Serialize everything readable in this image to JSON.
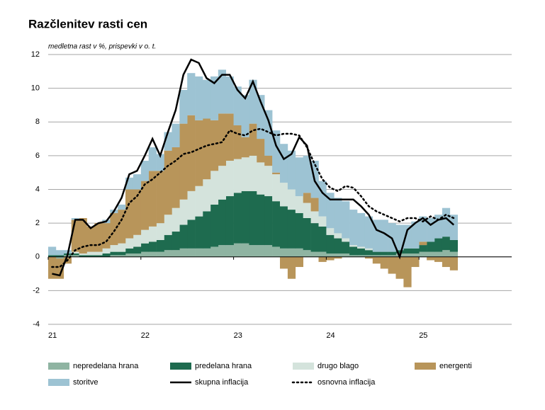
{
  "chart_data": {
    "type": "bar",
    "title": "Razčlenitev rasti cen",
    "subtitle": "medletna rast v %, prispevki v o. t.",
    "categories": [
      "21",
      null,
      null,
      null,
      null,
      null,
      null,
      null,
      null,
      null,
      null,
      null,
      "22",
      null,
      null,
      null,
      null,
      null,
      null,
      null,
      null,
      null,
      null,
      null,
      "23",
      null,
      null,
      null,
      null,
      null,
      null,
      null,
      null,
      null,
      null,
      null,
      "24",
      null,
      null,
      null,
      null,
      null,
      null,
      null,
      null,
      null,
      null,
      null,
      "25",
      null,
      null,
      null,
      null
    ],
    "ylim": [
      -4,
      12
    ],
    "yticks": [
      -4,
      -2,
      0,
      2,
      4,
      6,
      8,
      10,
      12
    ],
    "grid": true,
    "stacked": true,
    "series": [
      {
        "name": "nepredelana hrana",
        "color": "#8fb4a2",
        "values": [
          0.0,
          -0.1,
          0.1,
          0.1,
          0.0,
          0.0,
          0.0,
          0.0,
          0.1,
          0.1,
          0.2,
          0.2,
          0.3,
          0.3,
          0.3,
          0.4,
          0.4,
          0.5,
          0.5,
          0.5,
          0.5,
          0.6,
          0.7,
          0.7,
          0.8,
          0.8,
          0.7,
          0.7,
          0.7,
          0.6,
          0.5,
          0.5,
          0.5,
          0.4,
          0.3,
          0.3,
          0.2,
          0.2,
          0.2,
          0.1,
          0.1,
          0.1,
          0.1,
          0.1,
          0.1,
          0.2,
          0.2,
          0.2,
          0.3,
          0.3,
          0.3,
          0.4,
          0.3
        ]
      },
      {
        "name": "predelana hrana",
        "color": "#1e6b4f",
        "values": [
          0.1,
          0.1,
          0.1,
          0.1,
          0.1,
          0.1,
          0.1,
          0.2,
          0.2,
          0.2,
          0.3,
          0.4,
          0.5,
          0.6,
          0.7,
          0.9,
          1.1,
          1.4,
          1.7,
          1.9,
          2.2,
          2.5,
          2.7,
          2.9,
          3.0,
          3.1,
          3.2,
          3.0,
          2.9,
          2.7,
          2.5,
          2.3,
          2.1,
          1.9,
          1.7,
          1.5,
          1.1,
          0.9,
          0.7,
          0.5,
          0.4,
          0.3,
          0.2,
          0.2,
          0.2,
          0.2,
          0.3,
          0.3,
          0.4,
          0.6,
          0.8,
          0.8,
          0.7
        ]
      },
      {
        "name": "drugo blago",
        "color": "#d4e3dc",
        "values": [
          0.0,
          0.0,
          0.0,
          0.1,
          0.1,
          0.2,
          0.2,
          0.3,
          0.4,
          0.5,
          0.6,
          0.7,
          0.8,
          0.9,
          1.0,
          1.2,
          1.4,
          1.5,
          1.7,
          1.8,
          1.9,
          2.0,
          2.0,
          2.1,
          2.0,
          2.0,
          2.1,
          1.9,
          1.8,
          1.6,
          1.4,
          1.2,
          1.0,
          0.9,
          0.7,
          0.6,
          0.4,
          0.3,
          0.2,
          0.1,
          0.1,
          0.1,
          0.0,
          0.0,
          0.0,
          0.0,
          0.0,
          0.0,
          0.0,
          0.0,
          0.0,
          0.0,
          0.0
        ]
      },
      {
        "name": "energenti",
        "color": "#b8955a",
        "values": [
          -1.3,
          -1.2,
          -0.4,
          1.9,
          2.1,
          1.5,
          1.7,
          1.5,
          1.9,
          2.0,
          2.9,
          2.7,
          2.9,
          3.3,
          3.1,
          3.8,
          3.6,
          4.5,
          4.5,
          3.9,
          3.6,
          3.0,
          3.1,
          2.8,
          2.0,
          1.2,
          1.9,
          1.4,
          0.6,
          0.1,
          -0.7,
          -1.3,
          -0.6,
          0.6,
          0.8,
          -0.3,
          -0.2,
          -0.1,
          0.0,
          0.0,
          0.0,
          -0.1,
          -0.4,
          -0.7,
          -1.0,
          -1.3,
          -1.8,
          -0.6,
          0.2,
          -0.2,
          -0.3,
          -0.6,
          -0.8
        ]
      },
      {
        "name": "storitve",
        "color": "#9dc3d3",
        "values": [
          0.5,
          0.3,
          0.2,
          0.1,
          0.0,
          0.0,
          0.0,
          0.2,
          0.2,
          0.3,
          0.7,
          0.9,
          1.2,
          1.4,
          1.0,
          1.1,
          1.4,
          2.0,
          2.5,
          2.6,
          2.3,
          2.6,
          2.6,
          2.2,
          2.3,
          2.5,
          2.6,
          2.6,
          2.7,
          2.5,
          2.3,
          2.3,
          2.3,
          2.2,
          2.2,
          2.1,
          2.1,
          2.1,
          2.2,
          2.1,
          2.0,
          1.9,
          1.9,
          1.9,
          1.7,
          1.5,
          1.4,
          1.6,
          1.5,
          1.4,
          1.4,
          1.7,
          1.5
        ]
      }
    ],
    "lines": [
      {
        "name": "skupna inflacija",
        "color": "#000000",
        "dash": "solid",
        "values": [
          -1.0,
          -1.1,
          0.1,
          2.2,
          2.2,
          1.7,
          2.0,
          2.1,
          2.7,
          3.5,
          4.9,
          5.1,
          6.0,
          7.0,
          6.0,
          7.4,
          8.7,
          10.8,
          11.7,
          11.5,
          10.6,
          10.3,
          10.8,
          10.8,
          9.9,
          9.4,
          10.4,
          9.2,
          8.1,
          6.6,
          5.8,
          6.1,
          7.1,
          6.6,
          4.5,
          3.8,
          3.4,
          3.4,
          3.4,
          3.4,
          3.0,
          2.5,
          1.6,
          1.4,
          1.1,
          0.0,
          1.6,
          2.0,
          2.3,
          1.9,
          2.2,
          2.3,
          1.9
        ]
      },
      {
        "name": "osnovna inflacija",
        "color": "#000000",
        "dash": "dotted",
        "values": [
          -0.6,
          -0.6,
          -0.2,
          0.4,
          0.6,
          0.7,
          0.7,
          0.9,
          1.5,
          2.2,
          3.2,
          3.6,
          4.3,
          4.6,
          5.0,
          5.4,
          5.7,
          6.1,
          6.2,
          6.4,
          6.6,
          6.7,
          6.8,
          7.5,
          7.3,
          7.2,
          7.5,
          7.6,
          7.4,
          7.2,
          7.3,
          7.3,
          7.2,
          6.5,
          5.5,
          4.6,
          4.1,
          3.9,
          4.2,
          4.1,
          3.6,
          3.0,
          2.7,
          2.5,
          2.3,
          2.1,
          2.3,
          2.3,
          2.1,
          2.4,
          2.2,
          2.5,
          2.3
        ]
      }
    ]
  }
}
